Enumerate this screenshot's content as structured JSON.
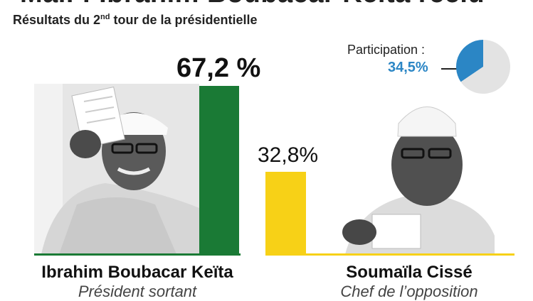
{
  "header": {
    "title_partial": "Mali : Ibrahim Boubacar Keïta réélu",
    "subtitle_main": "Résultats du 2",
    "subtitle_sup": "nd",
    "subtitle_rest": " tour de la présidentielle"
  },
  "candidates": [
    {
      "name": "Ibrahim Boubacar Keïta",
      "role": "Président sortant"
    },
    {
      "name": "Soumaïla Cissé",
      "role": "Chef de l’opposition"
    }
  ],
  "participation": {
    "label": "Participation :",
    "value_label": "34,5%"
  },
  "colors": {
    "winner": "#1a7a35",
    "runner_up": "#f7d117",
    "participation": "#2b86c5",
    "pie_rest": "#e3e3e3"
  },
  "chart_data": [
    {
      "type": "bar",
      "categories": [
        "Ibrahim Boubacar Keïta",
        "Soumaïla Cissé"
      ],
      "values": [
        67.2,
        32.8
      ],
      "value_labels": [
        "67,2 %",
        "32,8%"
      ],
      "unit": "%",
      "ylim": [
        0,
        100
      ]
    },
    {
      "type": "pie",
      "slices": [
        {
          "value": 34.5,
          "label": "34,5%"
        },
        {
          "value": 65.5
        }
      ]
    }
  ]
}
